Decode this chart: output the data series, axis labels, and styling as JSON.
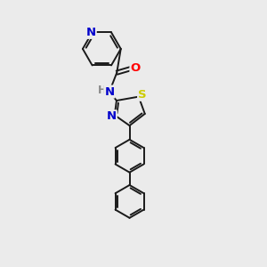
{
  "bg_color": "#ebebeb",
  "bond_color": "#1a1a1a",
  "bond_width": 1.4,
  "atom_colors": {
    "N": "#0000cc",
    "O": "#ff0000",
    "S": "#cccc00",
    "C": "#1a1a1a",
    "H": "#888888"
  },
  "font_size": 8.5,
  "figsize": [
    3.0,
    3.0
  ],
  "dpi": 100,
  "xlim": [
    0,
    10
  ],
  "ylim": [
    0,
    10
  ]
}
